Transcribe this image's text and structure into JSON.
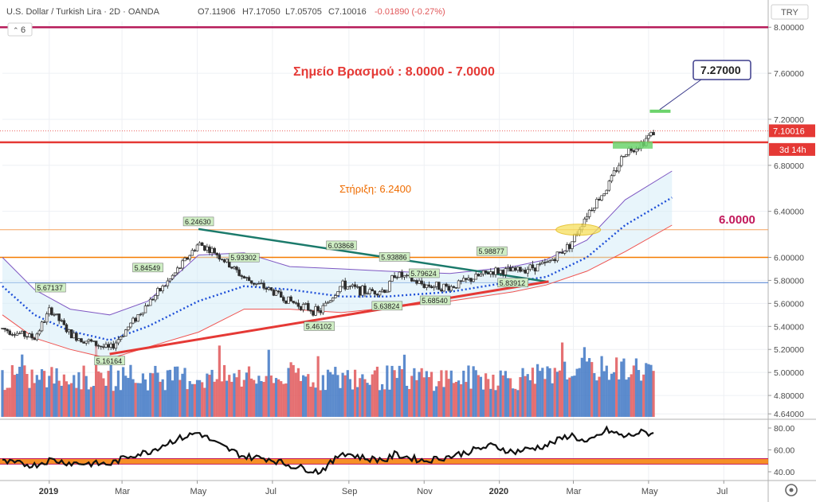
{
  "header": {
    "symbol": "U.S. Dollar / Turkish Lira · 2D · OANDA",
    "open": "O7.11906",
    "high": "H7.17050",
    "low": "L7.05705",
    "close": "C7.10016",
    "change": "-0.01890 (-0.27%)",
    "indicator_count": "6",
    "currency": "TRY"
  },
  "colors": {
    "up": "#3f77c4",
    "down": "#e15759",
    "resistance": "#e53935",
    "support_line": "#f57c00",
    "trendline": "#1b7a6b",
    "bb_upper": "#7e57c2",
    "bb_mid": "#1e4fd8",
    "bb_lower": "#ef5350",
    "rsi": "#111111",
    "rsi_band": "#f57c00",
    "crimson": "#b71c5a"
  },
  "chart_data": {
    "type": "candlestick",
    "y_range": [
      4.6,
      8.05
    ],
    "x_range_dates": [
      "2018-11-24",
      "2020-08-06"
    ],
    "y_ticks": [
      "8.00000",
      "7.60000",
      "7.20000",
      "6.80000",
      "6.40000",
      "6.00000",
      "5.80000",
      "5.60000",
      "5.40000",
      "5.20000",
      "5.00000",
      "4.80000",
      "4.64000"
    ],
    "x_ticks": [
      "2019",
      "Mar",
      "May",
      "Jul",
      "Sep",
      "Nov",
      "2020",
      "Mar",
      "May",
      "Jul"
    ],
    "last_price": "7.10016",
    "countdown": "3d 14h",
    "title_annotation": "Σημείο Βρασμού : 8.0000 - 7.0000",
    "support_annotation": "Στήριξη: 6.2400",
    "level_annotation": "6.0000",
    "callout": "7.27000",
    "levels": [
      {
        "name": "crimson",
        "value": 8.0
      },
      {
        "name": "resistance",
        "value": 7.0
      },
      {
        "name": "support",
        "value": 6.24
      },
      {
        "name": "orange",
        "value": 6.0
      },
      {
        "name": "blue",
        "value": 5.78
      }
    ],
    "pivots": [
      {
        "date": "2019-01-02",
        "value": "5.67137",
        "p": 5.67137
      },
      {
        "date": "2019-02-19",
        "value": "5.16164",
        "p": 5.16164
      },
      {
        "date": "2019-03-22",
        "value": "5.84549",
        "p": 5.84549
      },
      {
        "date": "2019-05-02",
        "value": "6.24630",
        "p": 6.2463
      },
      {
        "date": "2019-06-08",
        "value": "5.93302",
        "p": 5.93302
      },
      {
        "date": "2019-08-08",
        "value": "5.46102",
        "p": 5.46102
      },
      {
        "date": "2019-08-26",
        "value": "6.03868",
        "p": 6.03868
      },
      {
        "date": "2019-10-02",
        "value": "5.63824",
        "p": 5.63824
      },
      {
        "date": "2019-10-08",
        "value": "5.93886",
        "p": 5.93886
      },
      {
        "date": "2019-11-01",
        "value": "5.79624",
        "p": 5.79624
      },
      {
        "date": "2019-11-10",
        "value": "5.68540",
        "p": 5.6854
      },
      {
        "date": "2019-12-26",
        "value": "5.98877",
        "p": 5.98877
      },
      {
        "date": "2020-01-12",
        "value": "5.83912",
        "p": 5.83912
      }
    ],
    "trendlines": [
      {
        "name": "resistance-trend",
        "from": [
          "2019-05-02",
          6.2463
        ],
        "to": [
          "2020-02-08",
          5.79
        ]
      },
      {
        "name": "support-trend",
        "from": [
          "2019-02-19",
          5.16
        ],
        "to": [
          "2020-02-10",
          5.79
        ]
      }
    ],
    "price_path": [
      [
        "2018-11-24",
        5.38
      ],
      [
        "2018-12-20",
        5.3
      ],
      [
        "2019-01-02",
        5.55
      ],
      [
        "2019-01-18",
        5.33
      ],
      [
        "2019-02-19",
        5.2
      ],
      [
        "2019-03-08",
        5.42
      ],
      [
        "2019-03-22",
        5.6
      ],
      [
        "2019-04-10",
        5.82
      ],
      [
        "2019-05-02",
        6.12
      ],
      [
        "2019-05-16",
        6.04
      ],
      [
        "2019-06-08",
        5.82
      ],
      [
        "2019-06-28",
        5.72
      ],
      [
        "2019-07-15",
        5.62
      ],
      [
        "2019-08-08",
        5.52
      ],
      [
        "2019-08-26",
        5.76
      ],
      [
        "2019-09-15",
        5.7
      ],
      [
        "2019-10-02",
        5.72
      ],
      [
        "2019-10-08",
        5.86
      ],
      [
        "2019-11-01",
        5.76
      ],
      [
        "2019-11-22",
        5.74
      ],
      [
        "2019-12-26",
        5.88
      ],
      [
        "2020-01-12",
        5.88
      ],
      [
        "2020-02-08",
        5.94
      ],
      [
        "2020-02-28",
        6.12
      ],
      [
        "2020-03-12",
        6.38
      ],
      [
        "2020-03-28",
        6.6
      ],
      [
        "2020-04-12",
        6.92
      ],
      [
        "2020-04-24",
        6.98
      ],
      [
        "2020-05-06",
        7.1
      ]
    ],
    "bollinger": {
      "mid": [
        [
          "2018-11-24",
          5.75
        ],
        [
          "2018-12-20",
          5.5
        ],
        [
          "2019-01-18",
          5.36
        ],
        [
          "2019-02-19",
          5.28
        ],
        [
          "2019-03-22",
          5.4
        ],
        [
          "2019-05-02",
          5.62
        ],
        [
          "2019-06-08",
          5.75
        ],
        [
          "2019-07-15",
          5.72
        ],
        [
          "2019-08-26",
          5.66
        ],
        [
          "2019-10-02",
          5.66
        ],
        [
          "2019-11-22",
          5.7
        ],
        [
          "2020-01-12",
          5.79
        ],
        [
          "2020-02-08",
          5.83
        ],
        [
          "2020-03-12",
          6.0
        ],
        [
          "2020-04-12",
          6.28
        ],
        [
          "2020-05-20",
          6.52
        ]
      ],
      "upper": [
        [
          "2018-11-24",
          6.0
        ],
        [
          "2018-12-20",
          5.72
        ],
        [
          "2019-01-18",
          5.55
        ],
        [
          "2019-02-19",
          5.5
        ],
        [
          "2019-03-22",
          5.62
        ],
        [
          "2019-05-02",
          6.02
        ],
        [
          "2019-06-08",
          6.04
        ],
        [
          "2019-07-15",
          5.92
        ],
        [
          "2019-08-26",
          5.9
        ],
        [
          "2019-10-02",
          5.88
        ],
        [
          "2019-11-22",
          5.86
        ],
        [
          "2020-01-12",
          5.92
        ],
        [
          "2020-02-08",
          5.98
        ],
        [
          "2020-03-12",
          6.15
        ],
        [
          "2020-04-12",
          6.5
        ],
        [
          "2020-05-20",
          6.75
        ]
      ],
      "lower": [
        [
          "2018-11-24",
          5.5
        ],
        [
          "2018-12-20",
          5.3
        ],
        [
          "2019-01-18",
          5.2
        ],
        [
          "2019-02-19",
          5.12
        ],
        [
          "2019-03-22",
          5.22
        ],
        [
          "2019-05-02",
          5.35
        ],
        [
          "2019-06-08",
          5.55
        ],
        [
          "2019-07-15",
          5.55
        ],
        [
          "2019-08-26",
          5.52
        ],
        [
          "2019-10-02",
          5.56
        ],
        [
          "2019-11-22",
          5.62
        ],
        [
          "2020-01-12",
          5.7
        ],
        [
          "2020-02-08",
          5.76
        ],
        [
          "2020-03-12",
          5.88
        ],
        [
          "2020-04-12",
          6.05
        ],
        [
          "2020-05-20",
          6.28
        ]
      ]
    },
    "volume_axis_note": "volume shown as bars in lower part of price pane",
    "rsi": {
      "y_range": [
        32,
        88
      ],
      "y_ticks": [
        "80.00",
        "60.00",
        "40.00"
      ],
      "band": [
        47,
        52
      ],
      "path": [
        [
          "2018-11-24",
          49
        ],
        [
          "2018-12-20",
          46
        ],
        [
          "2019-01-02",
          51
        ],
        [
          "2019-01-18",
          48
        ],
        [
          "2019-02-19",
          47
        ],
        [
          "2019-03-08",
          55
        ],
        [
          "2019-03-22",
          58
        ],
        [
          "2019-04-10",
          68
        ],
        [
          "2019-05-02",
          76
        ],
        [
          "2019-05-16",
          66
        ],
        [
          "2019-06-08",
          54
        ],
        [
          "2019-06-28",
          52
        ],
        [
          "2019-07-15",
          46
        ],
        [
          "2019-08-08",
          40
        ],
        [
          "2019-08-20",
          50
        ],
        [
          "2019-08-26",
          58
        ],
        [
          "2019-09-15",
          52
        ],
        [
          "2019-10-02",
          51
        ],
        [
          "2019-10-08",
          56
        ],
        [
          "2019-11-01",
          50
        ],
        [
          "2019-11-22",
          54
        ],
        [
          "2019-12-26",
          64
        ],
        [
          "2020-01-12",
          58
        ],
        [
          "2020-02-08",
          64
        ],
        [
          "2020-02-28",
          74
        ],
        [
          "2020-03-12",
          66
        ],
        [
          "2020-03-28",
          78
        ],
        [
          "2020-04-12",
          72
        ],
        [
          "2020-04-24",
          76
        ],
        [
          "2020-05-06",
          75
        ]
      ]
    }
  }
}
